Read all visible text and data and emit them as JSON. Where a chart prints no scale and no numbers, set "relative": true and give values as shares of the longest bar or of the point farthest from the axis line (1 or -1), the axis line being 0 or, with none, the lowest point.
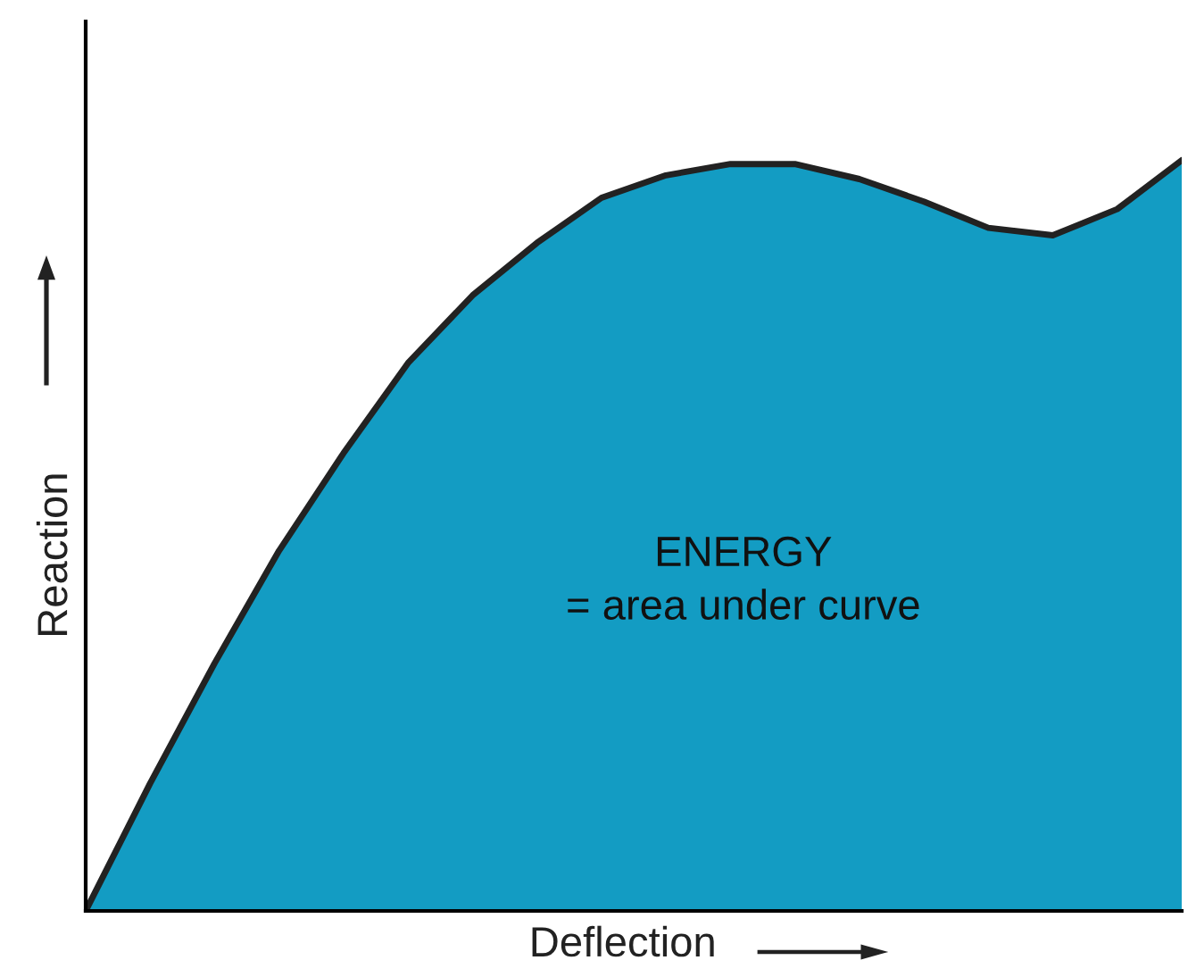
{
  "chart_data": {
    "type": "area",
    "relative": true,
    "xlabel": "Deflection",
    "ylabel": "Reaction",
    "categories": [
      null,
      null,
      null,
      null,
      null,
      null,
      null,
      null,
      null,
      null,
      null,
      null,
      null,
      null,
      null,
      null,
      null,
      null
    ],
    "series": [
      {
        "color": "#139cc3",
        "values": [
          0,
          0.17,
          0.33,
          0.48,
          0.61,
          0.73,
          0.82,
          0.89,
          0.95,
          0.98,
          0.995,
          0.995,
          0.975,
          0.945,
          0.91,
          0.9,
          0.935,
          1.0
        ]
      }
    ],
    "annotations": [
      "ENERGY",
      "= area under curve"
    ],
    "legend": false
  }
}
